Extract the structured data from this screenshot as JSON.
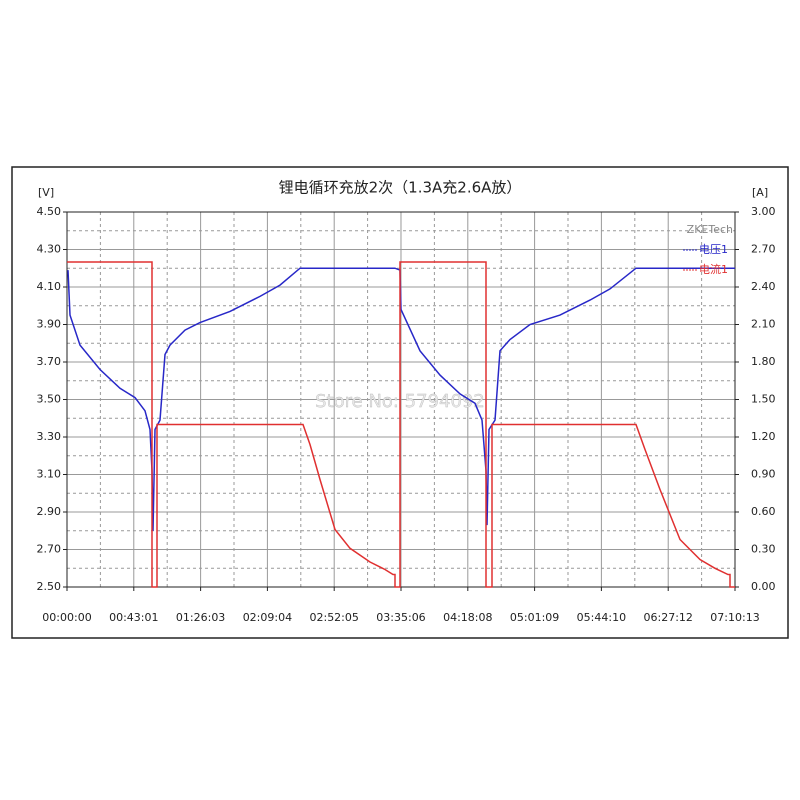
{
  "chart_data": {
    "type": "line",
    "title": "锂电循环充放2次（1.3A充2.6A放）",
    "y_label": "[V]",
    "y2_label": "[A]",
    "annotations": [
      "ZKETech",
      "Store No: 5794092"
    ],
    "grid": true,
    "legend": "upper right",
    "xlim": [
      0,
      25813
    ],
    "xticks": [
      {
        "value": 0,
        "label": "00:00:00"
      },
      {
        "value": 2581,
        "label": "00:43:01"
      },
      {
        "value": 5163,
        "label": "01:26:03"
      },
      {
        "value": 7744,
        "label": "02:09:04"
      },
      {
        "value": 10325,
        "label": "02:52:05"
      },
      {
        "value": 12906,
        "label": "03:35:06"
      },
      {
        "value": 15488,
        "label": "04:18:08"
      },
      {
        "value": 18069,
        "label": "05:01:09"
      },
      {
        "value": 20650,
        "label": "05:44:10"
      },
      {
        "value": 23232,
        "label": "06:27:12"
      },
      {
        "value": 25813,
        "label": "07:10:13"
      }
    ],
    "ylim": [
      2.5,
      4.5
    ],
    "yticks": [
      {
        "value": 2.5,
        "label": "2.50"
      },
      {
        "value": 2.7,
        "label": "2.70"
      },
      {
        "value": 2.9,
        "label": "2.90"
      },
      {
        "value": 3.1,
        "label": "3.10"
      },
      {
        "value": 3.3,
        "label": "3.30"
      },
      {
        "value": 3.5,
        "label": "3.50"
      },
      {
        "value": 3.7,
        "label": "3.70"
      },
      {
        "value": 3.9,
        "label": "3.90"
      },
      {
        "value": 4.1,
        "label": "4.10"
      },
      {
        "value": 4.3,
        "label": "4.30"
      },
      {
        "value": 4.5,
        "label": "4.50"
      }
    ],
    "y2lim": [
      0,
      3
    ],
    "y2ticks": [
      {
        "value": 0,
        "label": "0.00"
      },
      {
        "value": 0.3,
        "label": "0.30"
      },
      {
        "value": 0.6,
        "label": "0.60"
      },
      {
        "value": 0.9,
        "label": "0.90"
      },
      {
        "value": 1.2,
        "label": "1.20"
      },
      {
        "value": 1.5,
        "label": "1.50"
      },
      {
        "value": 1.8,
        "label": "1.80"
      },
      {
        "value": 2.1,
        "label": "2.10"
      },
      {
        "value": 2.4,
        "label": "2.40"
      },
      {
        "value": 2.7,
        "label": "2.70"
      },
      {
        "value": 3,
        "label": "3.00"
      }
    ],
    "series": [
      {
        "name": "电压1",
        "color": "#2828c8",
        "x": [
          39,
          116,
          502,
          1275,
          2048,
          2628,
          3014,
          3207,
          3284,
          3323,
          3400,
          3594,
          3787,
          3980,
          4560,
          5139,
          6298,
          7458,
          8231,
          9003,
          12674,
          12867,
          12906,
          13640,
          14413,
          15186,
          15765,
          16036,
          16190,
          16229,
          16306,
          16538,
          16731,
          17117,
          17890,
          19050,
          20209,
          20982,
          21987,
          25813
        ],
        "values": [
          4.19,
          3.95,
          3.79,
          3.66,
          3.56,
          3.51,
          3.44,
          3.34,
          3.12,
          2.8,
          3.34,
          3.39,
          3.74,
          3.79,
          3.87,
          3.91,
          3.97,
          4.05,
          4.11,
          4.2,
          4.2,
          4.19,
          3.98,
          3.76,
          3.63,
          3.53,
          3.48,
          3.39,
          3.12,
          2.83,
          3.34,
          3.39,
          3.76,
          3.82,
          3.9,
          3.95,
          4.03,
          4.09,
          4.2,
          4.2
        ]
      },
      {
        "name": "电流1",
        "color": "#e03030",
        "axis": "y2",
        "x": [
          0,
          3284,
          3284,
          3478,
          3478,
          9119,
          9390,
          9776,
          10356,
          10935,
          11708,
          12288,
          12597,
          12674,
          12674,
          12867,
          12867,
          16190,
          16190,
          16422,
          16422,
          21987,
          22334,
          22914,
          23687,
          24460,
          25040,
          25542,
          25619,
          25619,
          25813
        ],
        "values": [
          2.6,
          2.6,
          0,
          0,
          1.3,
          1.3,
          1.14,
          0.86,
          0.46,
          0.31,
          0.2,
          0.14,
          0.1,
          0.1,
          0,
          0,
          2.6,
          2.6,
          0,
          0,
          1.3,
          1.3,
          1.1,
          0.78,
          0.38,
          0.22,
          0.15,
          0.1,
          0.1,
          0,
          0
        ]
      }
    ]
  }
}
